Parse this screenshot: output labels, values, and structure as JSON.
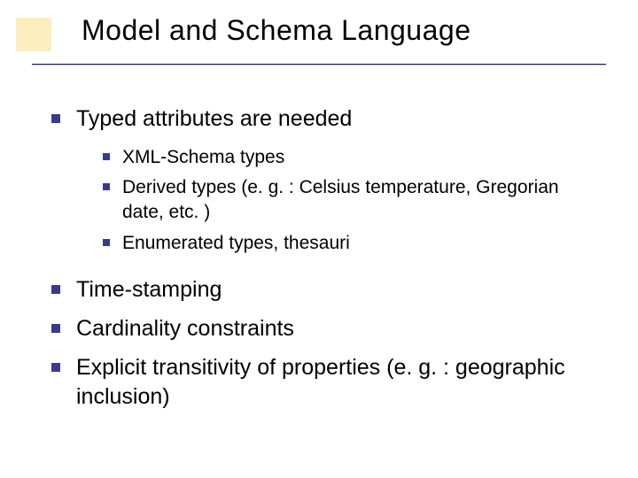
{
  "slide": {
    "title": "Model and Schema Language",
    "accent_color": "#f2b700",
    "bullet_color": "#3a3a8a",
    "underline_color": "#1a1a5c",
    "background_color": "#ffffff",
    "text_color": "#000000",
    "title_fontsize": 32,
    "level1_fontsize": 25,
    "level2_fontsize": 21,
    "items": [
      {
        "text": "Typed attributes are needed",
        "children": [
          {
            "text": "XML-Schema types"
          },
          {
            "text": "Derived types (e. g. : Celsius temperature, Gregorian date, etc. )"
          },
          {
            "text": "Enumerated types, thesauri"
          }
        ]
      },
      {
        "text": "Time-stamping"
      },
      {
        "text": "Cardinality constraints"
      },
      {
        "text": "Explicit transitivity of properties (e. g. : geographic inclusion)"
      }
    ]
  }
}
